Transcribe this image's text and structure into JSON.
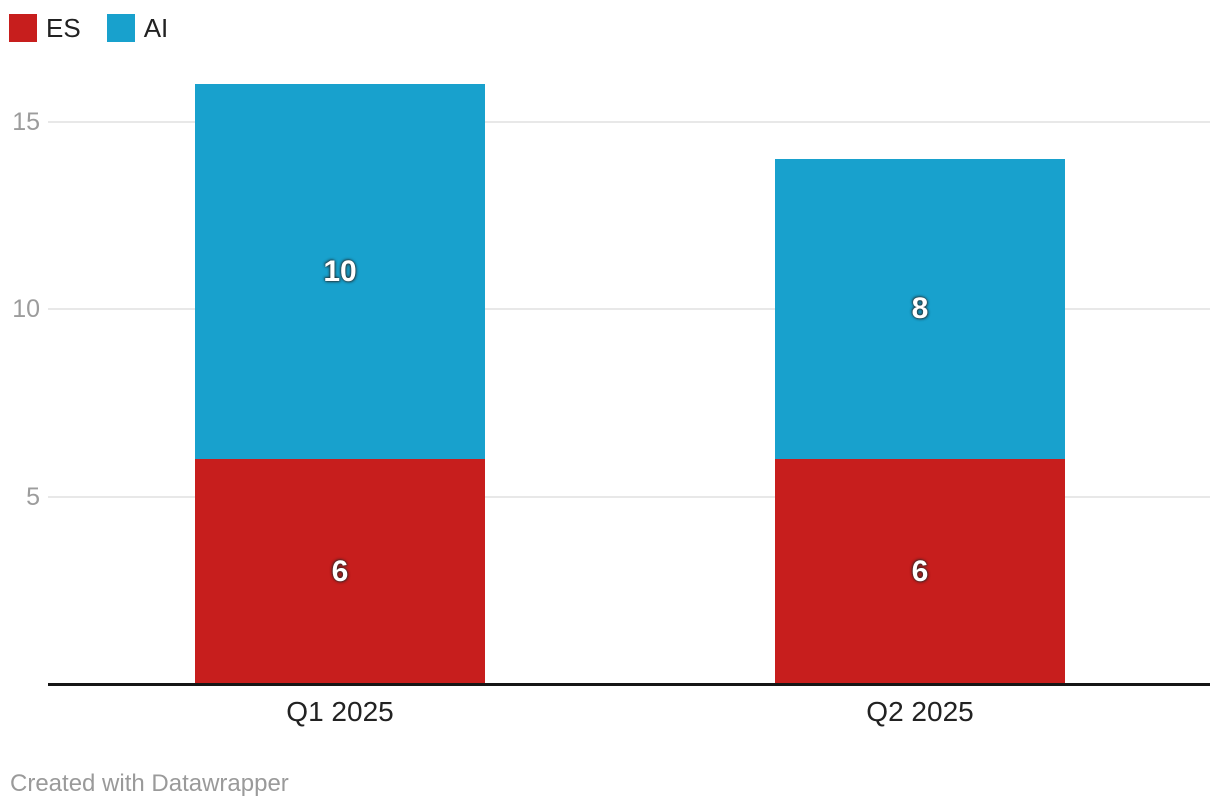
{
  "chart_data": {
    "type": "bar",
    "stacked": true,
    "categories": [
      "Q1 2025",
      "Q2 2025"
    ],
    "series": [
      {
        "name": "ES",
        "color": "#c71e1d",
        "values": [
          6,
          6
        ]
      },
      {
        "name": "AI",
        "color": "#18a1cd",
        "values": [
          10,
          8
        ]
      }
    ],
    "totals": [
      16,
      14
    ],
    "yticks": [
      5,
      10,
      15
    ],
    "ylim": [
      0,
      16
    ],
    "grid": "horizontal",
    "legend_position": "top-left",
    "bar_value_labels": true
  },
  "colors": {
    "grid": "#e8e8e8",
    "axis_line": "#161616",
    "tick_label": "#9c9c9c",
    "category_label": "#222222",
    "bar_label": "#ffffff"
  },
  "footer": {
    "attribution": "Created with Datawrapper"
  }
}
